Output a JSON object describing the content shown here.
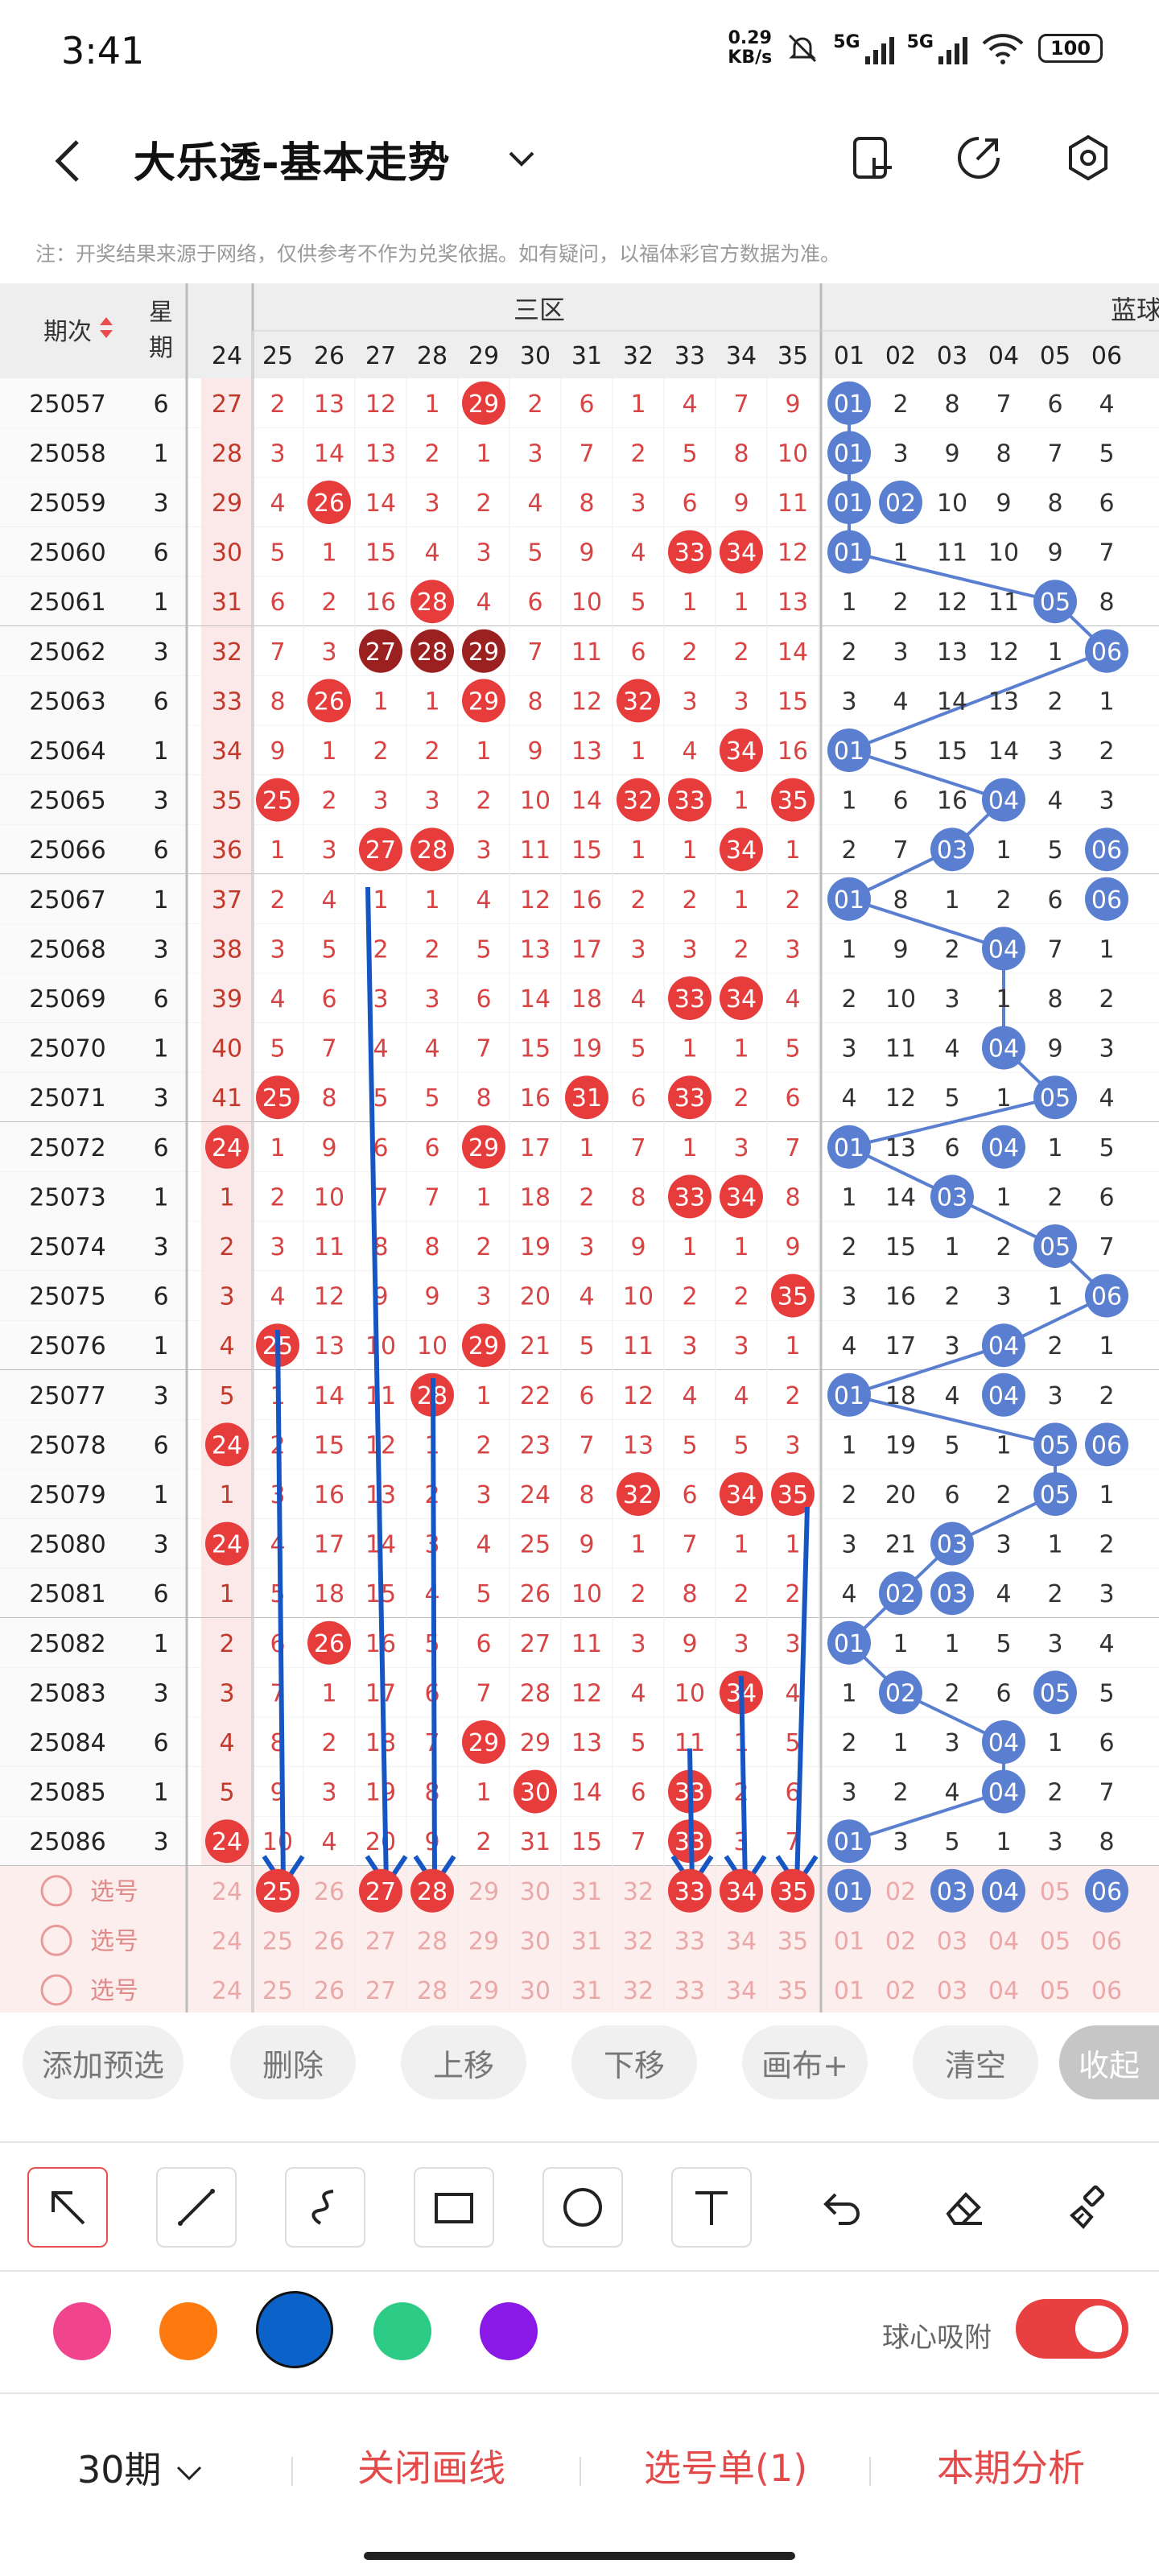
{
  "status": {
    "time": "3:41",
    "net_value": "0.29",
    "net_unit": "KB/s",
    "sim1": "5G",
    "sim2": "5G",
    "battery": "100"
  },
  "header": {
    "title": "大乐透-基本走势"
  },
  "note": "注：开奖结果来源于网络，仅供参考不作为兑奖依据。如有疑问，以福体彩官方数据为准。",
  "chart": {
    "issue_col_label": "期次",
    "week_col_label_1": "星",
    "week_col_label_2": "期",
    "zone3_label": "三区",
    "blue_label": "蓝球",
    "front_numbers": [
      "24",
      "25",
      "26",
      "27",
      "28",
      "29",
      "30",
      "31",
      "32",
      "33",
      "34",
      "35"
    ],
    "blue_numbers": [
      "01",
      "02",
      "03",
      "04",
      "05",
      "06"
    ],
    "pick_label": "选号",
    "rows": [
      {
        "issue": "25057",
        "week": "6",
        "v": [
          "27",
          "2",
          "13",
          "12",
          "1",
          "29",
          "2",
          "6",
          "1",
          "4",
          "7",
          "9"
        ],
        "b": [
          "01",
          "2",
          "8",
          "7",
          "6",
          "4"
        ]
      },
      {
        "issue": "25058",
        "week": "1",
        "v": [
          "28",
          "3",
          "14",
          "13",
          "2",
          "1",
          "3",
          "7",
          "2",
          "5",
          "8",
          "10"
        ],
        "b": [
          "01",
          "3",
          "9",
          "8",
          "7",
          "5"
        ]
      },
      {
        "issue": "25059",
        "week": "3",
        "v": [
          "29",
          "4",
          "26",
          "14",
          "3",
          "2",
          "4",
          "8",
          "3",
          "6",
          "9",
          "11"
        ],
        "b": [
          "01",
          "02",
          "10",
          "9",
          "8",
          "6"
        ]
      },
      {
        "issue": "25060",
        "week": "6",
        "v": [
          "30",
          "5",
          "1",
          "15",
          "4",
          "3",
          "5",
          "9",
          "4",
          "33",
          "34",
          "12"
        ],
        "b": [
          "01",
          "1",
          "11",
          "10",
          "9",
          "7"
        ]
      },
      {
        "issue": "25061",
        "week": "1",
        "v": [
          "31",
          "6",
          "2",
          "16",
          "28",
          "4",
          "6",
          "10",
          "5",
          "1",
          "1",
          "13"
        ],
        "b": [
          "1",
          "2",
          "12",
          "11",
          "05",
          "8"
        ]
      },
      {
        "issue": "25062",
        "week": "3",
        "v": [
          "32",
          "7",
          "3",
          "27",
          "28",
          "29",
          "7",
          "11",
          "6",
          "2",
          "2",
          "14"
        ],
        "b": [
          "2",
          "3",
          "13",
          "12",
          "1",
          "06"
        ]
      },
      {
        "issue": "25063",
        "week": "6",
        "v": [
          "33",
          "8",
          "26",
          "1",
          "1",
          "29",
          "8",
          "12",
          "32",
          "3",
          "3",
          "15"
        ],
        "b": [
          "3",
          "4",
          "14",
          "13",
          "2",
          "1"
        ]
      },
      {
        "issue": "25064",
        "week": "1",
        "v": [
          "34",
          "9",
          "1",
          "2",
          "2",
          "1",
          "9",
          "13",
          "1",
          "4",
          "34",
          "16"
        ],
        "b": [
          "01",
          "5",
          "15",
          "14",
          "3",
          "2"
        ]
      },
      {
        "issue": "25065",
        "week": "3",
        "v": [
          "35",
          "25",
          "2",
          "3",
          "3",
          "2",
          "10",
          "14",
          "32",
          "33",
          "1",
          "35"
        ],
        "b": [
          "1",
          "6",
          "16",
          "04",
          "4",
          "3"
        ]
      },
      {
        "issue": "25066",
        "week": "6",
        "v": [
          "36",
          "1",
          "3",
          "27",
          "28",
          "3",
          "11",
          "15",
          "1",
          "1",
          "34",
          "1"
        ],
        "b": [
          "2",
          "7",
          "03",
          "1",
          "5",
          "06"
        ]
      },
      {
        "issue": "25067",
        "week": "1",
        "v": [
          "37",
          "2",
          "4",
          "1",
          "1",
          "4",
          "12",
          "16",
          "2",
          "2",
          "1",
          "2"
        ],
        "b": [
          "01",
          "8",
          "1",
          "2",
          "6",
          "06"
        ]
      },
      {
        "issue": "25068",
        "week": "3",
        "v": [
          "38",
          "3",
          "5",
          "2",
          "2",
          "5",
          "13",
          "17",
          "3",
          "3",
          "2",
          "3"
        ],
        "b": [
          "1",
          "9",
          "2",
          "04",
          "7",
          "1"
        ]
      },
      {
        "issue": "25069",
        "week": "6",
        "v": [
          "39",
          "4",
          "6",
          "3",
          "3",
          "6",
          "14",
          "18",
          "4",
          "33",
          "34",
          "4"
        ],
        "b": [
          "2",
          "10",
          "3",
          "1",
          "8",
          "2"
        ]
      },
      {
        "issue": "25070",
        "week": "1",
        "v": [
          "40",
          "5",
          "7",
          "4",
          "4",
          "7",
          "15",
          "19",
          "5",
          "1",
          "1",
          "5"
        ],
        "b": [
          "3",
          "11",
          "4",
          "04",
          "9",
          "3"
        ]
      },
      {
        "issue": "25071",
        "week": "3",
        "v": [
          "41",
          "25",
          "8",
          "5",
          "5",
          "8",
          "16",
          "31",
          "6",
          "33",
          "2",
          "6"
        ],
        "b": [
          "4",
          "12",
          "5",
          "1",
          "05",
          "4"
        ]
      },
      {
        "issue": "25072",
        "week": "6",
        "v": [
          "24",
          "1",
          "9",
          "6",
          "6",
          "29",
          "17",
          "1",
          "7",
          "1",
          "3",
          "7"
        ],
        "b": [
          "01",
          "13",
          "6",
          "04",
          "1",
          "5"
        ]
      },
      {
        "issue": "25073",
        "week": "1",
        "v": [
          "1",
          "2",
          "10",
          "7",
          "7",
          "1",
          "18",
          "2",
          "8",
          "33",
          "34",
          "8"
        ],
        "b": [
          "1",
          "14",
          "03",
          "1",
          "2",
          "6"
        ]
      },
      {
        "issue": "25074",
        "week": "3",
        "v": [
          "2",
          "3",
          "11",
          "8",
          "8",
          "2",
          "19",
          "3",
          "9",
          "1",
          "1",
          "9"
        ],
        "b": [
          "2",
          "15",
          "1",
          "2",
          "05",
          "7"
        ]
      },
      {
        "issue": "25075",
        "week": "6",
        "v": [
          "3",
          "4",
          "12",
          "9",
          "9",
          "3",
          "20",
          "4",
          "10",
          "2",
          "2",
          "35"
        ],
        "b": [
          "3",
          "16",
          "2",
          "3",
          "1",
          "06"
        ]
      },
      {
        "issue": "25076",
        "week": "1",
        "v": [
          "4",
          "25",
          "13",
          "10",
          "10",
          "29",
          "21",
          "5",
          "11",
          "3",
          "3",
          "1"
        ],
        "b": [
          "4",
          "17",
          "3",
          "04",
          "2",
          "1"
        ]
      },
      {
        "issue": "25077",
        "week": "3",
        "v": [
          "5",
          "1",
          "14",
          "11",
          "28",
          "1",
          "22",
          "6",
          "12",
          "4",
          "4",
          "2"
        ],
        "b": [
          "01",
          "18",
          "4",
          "04",
          "3",
          "2"
        ]
      },
      {
        "issue": "25078",
        "week": "6",
        "v": [
          "24",
          "2",
          "15",
          "12",
          "1",
          "2",
          "23",
          "7",
          "13",
          "5",
          "5",
          "3"
        ],
        "b": [
          "1",
          "19",
          "5",
          "1",
          "05",
          "06"
        ]
      },
      {
        "issue": "25079",
        "week": "1",
        "v": [
          "1",
          "3",
          "16",
          "13",
          "2",
          "3",
          "24",
          "8",
          "32",
          "6",
          "34",
          "35"
        ],
        "b": [
          "2",
          "20",
          "6",
          "2",
          "05",
          "1"
        ]
      },
      {
        "issue": "25080",
        "week": "3",
        "v": [
          "24",
          "4",
          "17",
          "14",
          "3",
          "4",
          "25",
          "9",
          "1",
          "7",
          "1",
          "1"
        ],
        "b": [
          "3",
          "21",
          "03",
          "3",
          "1",
          "2"
        ]
      },
      {
        "issue": "25081",
        "week": "6",
        "v": [
          "1",
          "5",
          "18",
          "15",
          "4",
          "5",
          "26",
          "10",
          "2",
          "8",
          "2",
          "2"
        ],
        "b": [
          "4",
          "02",
          "03",
          "4",
          "2",
          "3"
        ]
      },
      {
        "issue": "25082",
        "week": "1",
        "v": [
          "2",
          "6",
          "26",
          "16",
          "5",
          "6",
          "27",
          "11",
          "3",
          "9",
          "3",
          "3"
        ],
        "b": [
          "01",
          "1",
          "1",
          "5",
          "3",
          "4"
        ]
      },
      {
        "issue": "25083",
        "week": "3",
        "v": [
          "3",
          "7",
          "1",
          "17",
          "6",
          "7",
          "28",
          "12",
          "4",
          "10",
          "34",
          "4"
        ],
        "b": [
          "1",
          "02",
          "2",
          "6",
          "05",
          "5"
        ]
      },
      {
        "issue": "25084",
        "week": "6",
        "v": [
          "4",
          "8",
          "2",
          "18",
          "7",
          "29",
          "29",
          "13",
          "5",
          "11",
          "1",
          "5"
        ],
        "b": [
          "2",
          "1",
          "3",
          "04",
          "1",
          "6"
        ]
      },
      {
        "issue": "25085",
        "week": "1",
        "v": [
          "5",
          "9",
          "3",
          "19",
          "8",
          "1",
          "30",
          "14",
          "6",
          "33",
          "2",
          "6"
        ],
        "b": [
          "3",
          "2",
          "4",
          "04",
          "2",
          "7"
        ]
      },
      {
        "issue": "25086",
        "week": "3",
        "v": [
          "24",
          "10",
          "4",
          "20",
          "9",
          "2",
          "31",
          "15",
          "7",
          "33",
          "3",
          "7"
        ],
        "b": [
          "01",
          "3",
          "5",
          "1",
          "3",
          "8"
        ]
      }
    ]
  },
  "toolbar": {
    "add": "添加预选",
    "del": "删除",
    "up": "上移",
    "down": "下移",
    "canvas": "画布+",
    "clear": "清空",
    "collapse": "收起"
  },
  "colors": {
    "pink": "#f0448c",
    "orange": "#ff7a0e",
    "blue": "#0b63c9",
    "green": "#2dcc86",
    "purple": "#8a18e6"
  },
  "snap": {
    "label": "球心吸附",
    "on": true
  },
  "bottom": {
    "period": "30期",
    "close_line": "关闭画线",
    "pick_list": "选号单(1)",
    "analysis": "本期分析"
  }
}
